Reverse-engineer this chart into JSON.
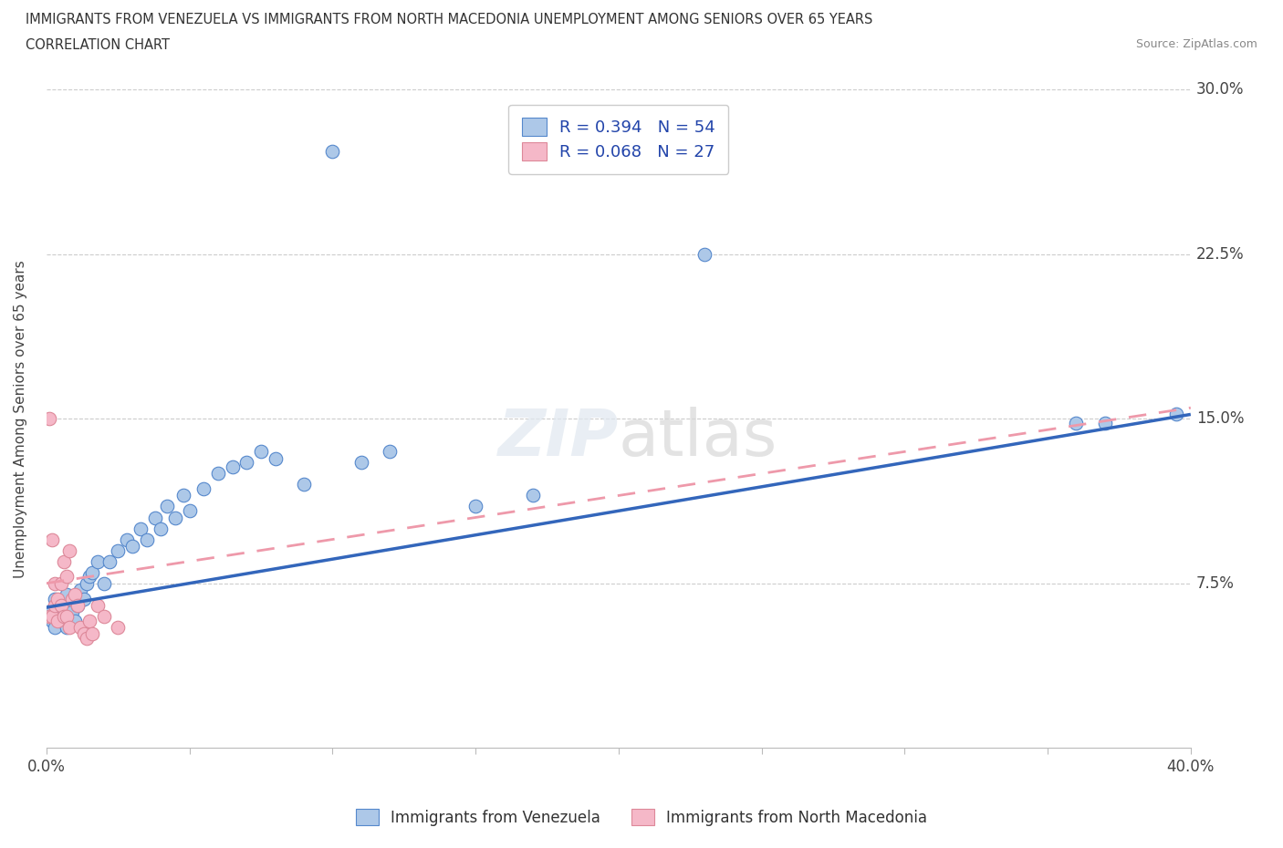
{
  "title_line1": "IMMIGRANTS FROM VENEZUELA VS IMMIGRANTS FROM NORTH MACEDONIA UNEMPLOYMENT AMONG SENIORS OVER 65 YEARS",
  "title_line2": "CORRELATION CHART",
  "source": "Source: ZipAtlas.com",
  "ylabel": "Unemployment Among Seniors over 65 years",
  "xlim": [
    0.0,
    0.4
  ],
  "ylim": [
    0.0,
    0.3
  ],
  "xticks": [
    0.0,
    0.05,
    0.1,
    0.15,
    0.2,
    0.25,
    0.3,
    0.35,
    0.4
  ],
  "yticks": [
    0.0,
    0.075,
    0.15,
    0.225,
    0.3
  ],
  "venezuela_R": 0.394,
  "venezuela_N": 54,
  "macedonia_R": 0.068,
  "macedonia_N": 27,
  "venezuela_color": "#adc8e8",
  "venezuela_edge": "#5588cc",
  "macedonia_color": "#f5b8c8",
  "macedonia_edge": "#dd8899",
  "venezuela_line_color": "#3366bb",
  "macedonia_line_color": "#ee99aa",
  "ven_line_x0": 0.0,
  "ven_line_y0": 0.064,
  "ven_line_x1": 0.4,
  "ven_line_y1": 0.152,
  "mac_line_x0": 0.0,
  "mac_line_y0": 0.075,
  "mac_line_x1": 0.4,
  "mac_line_y1": 0.155,
  "venezuela_x": [
    0.001,
    0.002,
    0.002,
    0.003,
    0.003,
    0.004,
    0.004,
    0.005,
    0.005,
    0.006,
    0.006,
    0.007,
    0.007,
    0.008,
    0.008,
    0.009,
    0.01,
    0.01,
    0.011,
    0.012,
    0.013,
    0.014,
    0.015,
    0.016,
    0.018,
    0.02,
    0.022,
    0.025,
    0.028,
    0.03,
    0.033,
    0.035,
    0.038,
    0.04,
    0.042,
    0.045,
    0.048,
    0.05,
    0.055,
    0.06,
    0.065,
    0.07,
    0.075,
    0.08,
    0.09,
    0.1,
    0.11,
    0.12,
    0.15,
    0.17,
    0.23,
    0.36,
    0.37,
    0.395
  ],
  "venezuela_y": [
    0.06,
    0.058,
    0.063,
    0.055,
    0.068,
    0.06,
    0.062,
    0.058,
    0.065,
    0.06,
    0.068,
    0.055,
    0.07,
    0.06,
    0.065,
    0.062,
    0.058,
    0.068,
    0.065,
    0.072,
    0.068,
    0.075,
    0.078,
    0.08,
    0.085,
    0.075,
    0.085,
    0.09,
    0.095,
    0.092,
    0.1,
    0.095,
    0.105,
    0.1,
    0.11,
    0.105,
    0.115,
    0.108,
    0.118,
    0.125,
    0.128,
    0.13,
    0.135,
    0.132,
    0.12,
    0.272,
    0.13,
    0.135,
    0.11,
    0.115,
    0.225,
    0.148,
    0.148,
    0.152
  ],
  "macedonia_x": [
    0.001,
    0.001,
    0.002,
    0.002,
    0.003,
    0.003,
    0.004,
    0.004,
    0.005,
    0.005,
    0.006,
    0.006,
    0.007,
    0.007,
    0.008,
    0.008,
    0.009,
    0.01,
    0.011,
    0.012,
    0.013,
    0.014,
    0.015,
    0.016,
    0.018,
    0.02,
    0.025
  ],
  "macedonia_y": [
    0.15,
    0.06,
    0.095,
    0.06,
    0.075,
    0.065,
    0.068,
    0.058,
    0.075,
    0.065,
    0.085,
    0.06,
    0.078,
    0.06,
    0.09,
    0.055,
    0.068,
    0.07,
    0.065,
    0.055,
    0.052,
    0.05,
    0.058,
    0.052,
    0.065,
    0.06,
    0.055
  ]
}
